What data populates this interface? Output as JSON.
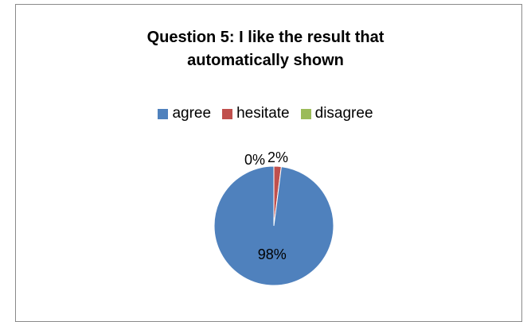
{
  "chart_data": {
    "type": "pie",
    "title": "Question 5: I like the result that\nautomatically shown",
    "categories": [
      "agree",
      "hesitate",
      "disagree"
    ],
    "values": [
      98,
      2,
      0
    ],
    "data_labels": [
      "98%",
      "2%",
      "0%"
    ],
    "colors": [
      "#4f81bd",
      "#c0504d",
      "#9bbb59"
    ],
    "legend_position": "top"
  }
}
